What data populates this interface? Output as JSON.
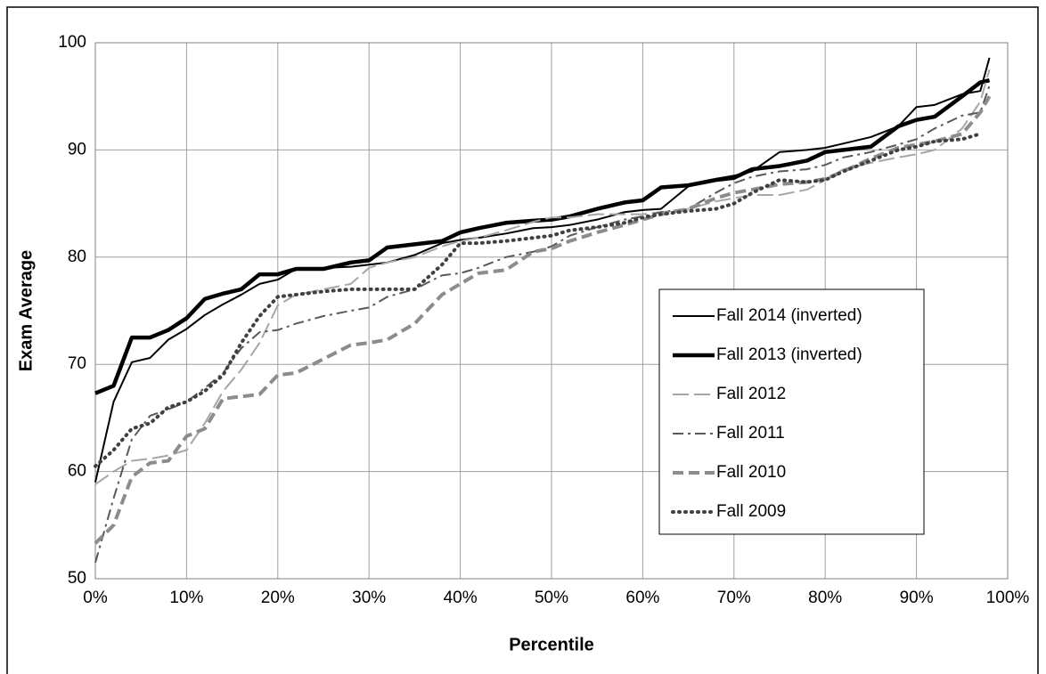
{
  "chart_data": {
    "type": "line",
    "xlabel": "Percentile",
    "ylabel": "Exam Average",
    "x": [
      0,
      2,
      4,
      6,
      8,
      10,
      12,
      14,
      16,
      18,
      20,
      22,
      25,
      28,
      30,
      32,
      35,
      38,
      40,
      42,
      45,
      48,
      50,
      52,
      55,
      58,
      60,
      62,
      65,
      68,
      70,
      72,
      75,
      78,
      80,
      82,
      85,
      88,
      90,
      92,
      95,
      97,
      98
    ],
    "series": [
      {
        "name": "Fall 2014 (inverted)",
        "color": "#000000",
        "linestyle": "solid",
        "values": [
          59,
          66.5,
          70.2,
          70.6,
          72.3,
          73.3,
          74.6,
          75.6,
          76.5,
          77.5,
          77.9,
          78.9,
          79.0,
          79.1,
          79.3,
          79.5,
          80.2,
          81.3,
          81.6,
          81.8,
          82.2,
          82.7,
          82.8,
          83.0,
          83.5,
          84.2,
          84.4,
          84.5,
          86.6,
          87.3,
          87.6,
          88.0,
          89.8,
          90.0,
          90.2,
          90.6,
          91.2,
          92.2,
          94.0,
          94.2,
          95.2,
          95.5,
          98.6
        ]
      },
      {
        "name": "Fall 2013 (inverted)",
        "color": "#000000",
        "linestyle": "solid-thick",
        "values": [
          67.3,
          68,
          72.5,
          72.5,
          73.2,
          74.3,
          76.1,
          76.6,
          77.0,
          78.4,
          78.4,
          78.9,
          78.9,
          79.5,
          79.7,
          80.9,
          81.2,
          81.5,
          82.3,
          82.7,
          83.2,
          83.4,
          83.5,
          83.8,
          84.5,
          85.1,
          85.3,
          86.5,
          86.7,
          87.2,
          87.4,
          88.2,
          88.5,
          89.0,
          89.8,
          90.0,
          90.3,
          92.2,
          92.8,
          93.1,
          95.0,
          96.3,
          96.5
        ]
      },
      {
        "name": "Fall 2012",
        "color": "#a6a6a6",
        "linestyle": "dashed",
        "values": [
          58.8,
          60,
          61.0,
          61.2,
          61.5,
          62.0,
          64.5,
          67.5,
          69.5,
          72.0,
          75.5,
          76.5,
          77.0,
          77.5,
          79.0,
          79.5,
          80.0,
          81.0,
          81.5,
          81.8,
          82.5,
          83.3,
          83.7,
          83.7,
          84.0,
          84.0,
          84.0,
          84.2,
          84.5,
          85.2,
          85.5,
          85.8,
          85.8,
          86.3,
          87.2,
          88.2,
          88.8,
          89.3,
          89.6,
          90.0,
          92.0,
          94.5,
          97.5
        ]
      },
      {
        "name": "Fall 2011",
        "color": "#595959",
        "linestyle": "dashdot",
        "values": [
          51.5,
          57.5,
          63.0,
          65.2,
          65.8,
          66.5,
          67.8,
          69.2,
          71.5,
          73.0,
          73.2,
          73.8,
          74.5,
          75.0,
          75.3,
          76.3,
          77.0,
          78.3,
          78.5,
          79.0,
          80.0,
          80.5,
          81.0,
          82.0,
          82.8,
          83.5,
          83.8,
          84.2,
          84.5,
          86.0,
          86.9,
          87.5,
          88.0,
          88.2,
          88.6,
          89.3,
          89.8,
          90.5,
          91.0,
          92.0,
          93.2,
          93.5,
          96.0
        ]
      },
      {
        "name": "Fall 2010",
        "color": "#8c8c8c",
        "linestyle": "dashed-thick",
        "values": [
          53.3,
          55,
          59.5,
          60.8,
          61.0,
          63.3,
          64.0,
          66.8,
          67.0,
          67.2,
          69.0,
          69.2,
          70.5,
          71.8,
          72.0,
          72.3,
          73.8,
          76.5,
          77.5,
          78.5,
          78.8,
          80.5,
          80.8,
          81.5,
          82.3,
          83.0,
          83.5,
          84.0,
          84.5,
          85.5,
          86.0,
          86.3,
          86.8,
          87.0,
          87.3,
          88.0,
          89.2,
          90.2,
          90.5,
          90.8,
          91.5,
          93.5,
          95.0
        ]
      },
      {
        "name": "Fall 2009",
        "color": "#404040",
        "linestyle": "dotted",
        "values": [
          60.5,
          62,
          64.0,
          64.5,
          66.0,
          66.5,
          67.5,
          69.0,
          72.0,
          74.5,
          76.3,
          76.5,
          76.8,
          77.0,
          77.0,
          77.0,
          77.0,
          79.3,
          81.3,
          81.3,
          81.5,
          81.8,
          82.0,
          82.5,
          82.8,
          83.2,
          83.7,
          84.0,
          84.3,
          84.5,
          85.0,
          86.0,
          87.2,
          87.0,
          87.2,
          88.0,
          89.0,
          90.0,
          90.3,
          90.8,
          91.0,
          91.5,
          null
        ]
      }
    ],
    "xlim": [
      0,
      100
    ],
    "xticks": [
      {
        "value": 0,
        "label": "0%"
      },
      {
        "value": 10,
        "label": "10%"
      },
      {
        "value": 20,
        "label": "20%"
      },
      {
        "value": 30,
        "label": "30%"
      },
      {
        "value": 40,
        "label": "40%"
      },
      {
        "value": 50,
        "label": "50%"
      },
      {
        "value": 60,
        "label": "60%"
      },
      {
        "value": 70,
        "label": "70%"
      },
      {
        "value": 80,
        "label": "80%"
      },
      {
        "value": 90,
        "label": "90%"
      },
      {
        "value": 100,
        "label": "100%"
      }
    ],
    "ylim": [
      50,
      100
    ],
    "yticks": [
      50,
      60,
      70,
      80,
      90,
      100
    ],
    "grid": true,
    "legend_loc": "right"
  }
}
